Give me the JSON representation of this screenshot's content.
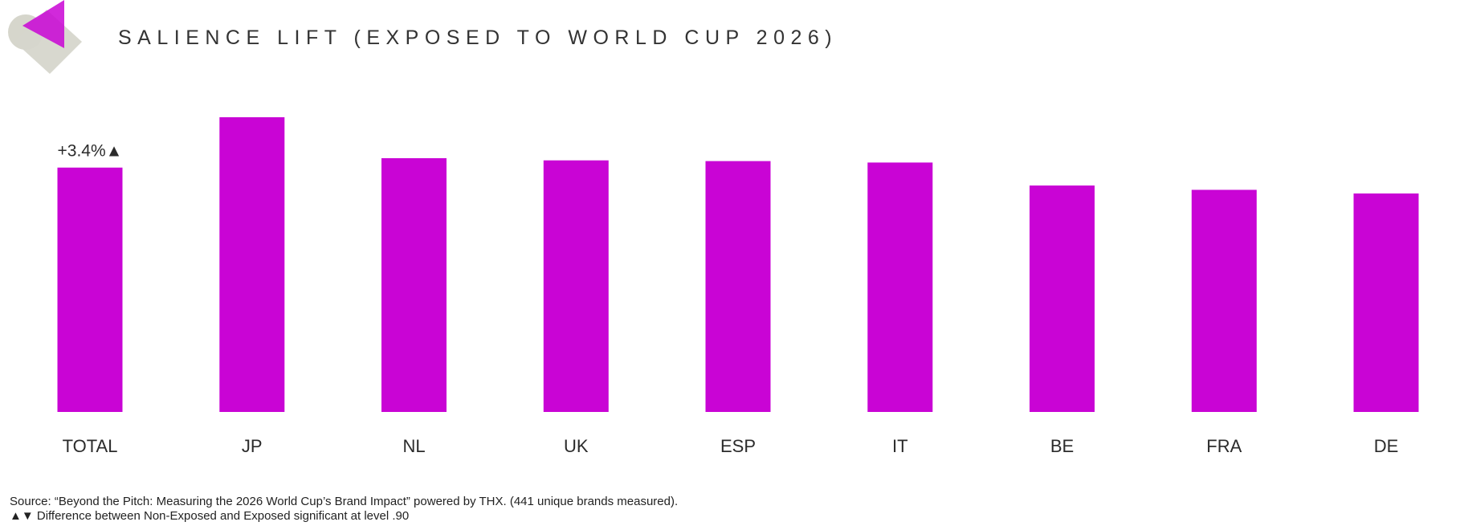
{
  "header": {
    "title": "SALIENCE LIFT (EXPOSED TO WORLD CUP 2026)"
  },
  "colors": {
    "bar": "#C904D5",
    "logo_magenta": "#C904D5",
    "logo_grey": "#D6D6CC"
  },
  "chart_data": {
    "type": "bar",
    "title": "SALIENCE LIFT (EXPOSED TO WORLD CUP 2026)",
    "categories": [
      "TOTAL",
      "JP",
      "NL",
      "UK",
      "ESP",
      "IT",
      "BE",
      "FRA",
      "DE"
    ],
    "values": [
      3.4,
      4.1,
      3.53,
      3.5,
      3.49,
      3.47,
      3.15,
      3.09,
      3.04
    ],
    "value_unit": "%",
    "data_labels": [
      {
        "category": "TOTAL",
        "text": "+3.4%▲"
      }
    ],
    "ylim": [
      0,
      4.1
    ],
    "grid": false,
    "legend": "none",
    "xlabel": "",
    "ylabel": ""
  },
  "footer": {
    "source_label": "Source:",
    "source_text": " “Beyond the Pitch: Measuring the 2026 World Cup’s Brand Impact” powered by THX. (441 unique brands measured).",
    "note": "▲▼ Difference between Non-Exposed and Exposed significant at level .90"
  }
}
